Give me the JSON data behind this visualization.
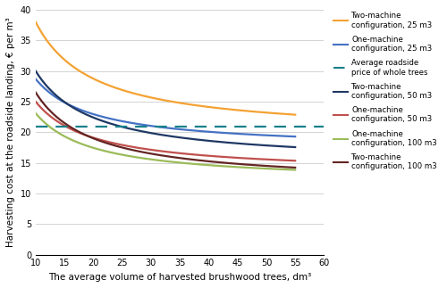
{
  "colors": {
    "two_machine_25": "#F4A233",
    "one_machine_25": "#4472C4",
    "two_machine_50": "#1F3864",
    "one_machine_50": "#C0504D",
    "one_machine_100": "#9BBB59",
    "two_machine_100": "#632523",
    "avg_price": "#17808B"
  },
  "curve_params": {
    "two_machine_25": {
      "a": 19.5,
      "b": 185.0
    },
    "one_machine_25": {
      "a": 17.2,
      "b": 115.0
    },
    "two_machine_50": {
      "a": 14.8,
      "b": 152.0
    },
    "one_machine_50": {
      "a": 13.2,
      "b": 118.0
    },
    "one_machine_100": {
      "a": 11.8,
      "b": 113.0
    },
    "two_machine_100": {
      "a": 11.5,
      "b": 150.0
    }
  },
  "avg_price": 20.9,
  "xlabel": "The average volume of harvested brushwood trees, dm³",
  "ylabel": "Harvesting cost at the roadside landing, € per m³",
  "xlim": [
    10,
    60
  ],
  "ylim": [
    0,
    40
  ],
  "xticks": [
    10,
    15,
    20,
    25,
    30,
    35,
    40,
    45,
    50,
    55,
    60
  ],
  "yticks": [
    0,
    5,
    10,
    15,
    20,
    25,
    30,
    35,
    40
  ],
  "legend_labels": [
    "Two-machine\nconfiguration, 25 m3",
    "One-machine\nconfiguration, 25 m3",
    "Average roadside\nprice of whole trees",
    "Two-machine\nconfiguration, 50 m3",
    "One-machine\nconfiguration, 50 m3",
    "One-machine\nconfiguration, 100 m3",
    "Two-machine\nconfiguration, 100 m3"
  ]
}
